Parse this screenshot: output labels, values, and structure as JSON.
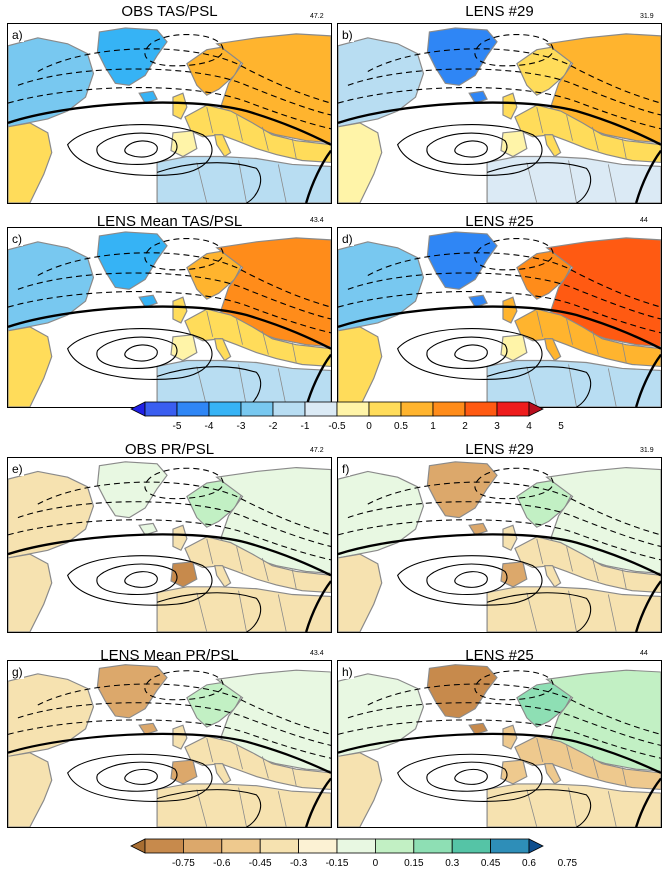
{
  "panels": [
    {
      "id": "a",
      "label": "a)",
      "title": "OBS TAS/PSL",
      "value": "47.2",
      "kind": "tas",
      "variant": 0
    },
    {
      "id": "b",
      "label": "b)",
      "title": "LENS #29",
      "value": "31.9",
      "kind": "tas",
      "variant": 1
    },
    {
      "id": "c",
      "label": "c)",
      "title": "LENS Mean TAS/PSL",
      "value": "43.4",
      "kind": "tas",
      "variant": 2
    },
    {
      "id": "d",
      "label": "d)",
      "title": "LENS #25",
      "value": "44",
      "kind": "tas",
      "variant": 3
    },
    {
      "id": "e",
      "label": "e)",
      "title": "OBS PR/PSL",
      "value": "47.2",
      "kind": "pr",
      "variant": 0
    },
    {
      "id": "f",
      "label": "f)",
      "title": "LENS #29",
      "value": "31.9",
      "kind": "pr",
      "variant": 1
    },
    {
      "id": "g",
      "label": "g)",
      "title": "LENS Mean PR/PSL",
      "value": "43.4",
      "kind": "pr",
      "variant": 2
    },
    {
      "id": "h",
      "label": "h)",
      "title": "LENS #25",
      "value": "44",
      "kind": "pr",
      "variant": 3
    }
  ],
  "colorbars": {
    "tas": {
      "ticks": [
        "-5",
        "-4",
        "-3",
        "-2",
        "-1",
        "-0.5",
        "0",
        "0.5",
        "1",
        "2",
        "3",
        "4",
        "5"
      ],
      "colors": [
        "#2020e6",
        "#3a5ef0",
        "#2f86f5",
        "#36b3f5",
        "#78c8f0",
        "#b8ddf2",
        "#dbeaf5",
        "#fff4a8",
        "#ffdc5a",
        "#ffb42e",
        "#ff8c1a",
        "#ff5a12",
        "#ee1c1c",
        "#b80f1e"
      ]
    },
    "pr": {
      "ticks": [
        "-0.75",
        "-0.6",
        "-0.45",
        "-0.3",
        "-0.15",
        "0",
        "0.15",
        "0.3",
        "0.45",
        "0.6",
        "0.75"
      ],
      "colors": [
        "#a86e32",
        "#c78a4c",
        "#dca86b",
        "#eec98e",
        "#f6e2b0",
        "#fcf2d4",
        "#e8f8e2",
        "#c2f0c4",
        "#8edfb4",
        "#55c4a6",
        "#2e8eb8",
        "#0e4e8e"
      ]
    }
  },
  "colors": {
    "land_neutral": "#fefcf4",
    "ocean": "#ffffff",
    "coast": "#8a8a8a",
    "contour": "#000000"
  }
}
